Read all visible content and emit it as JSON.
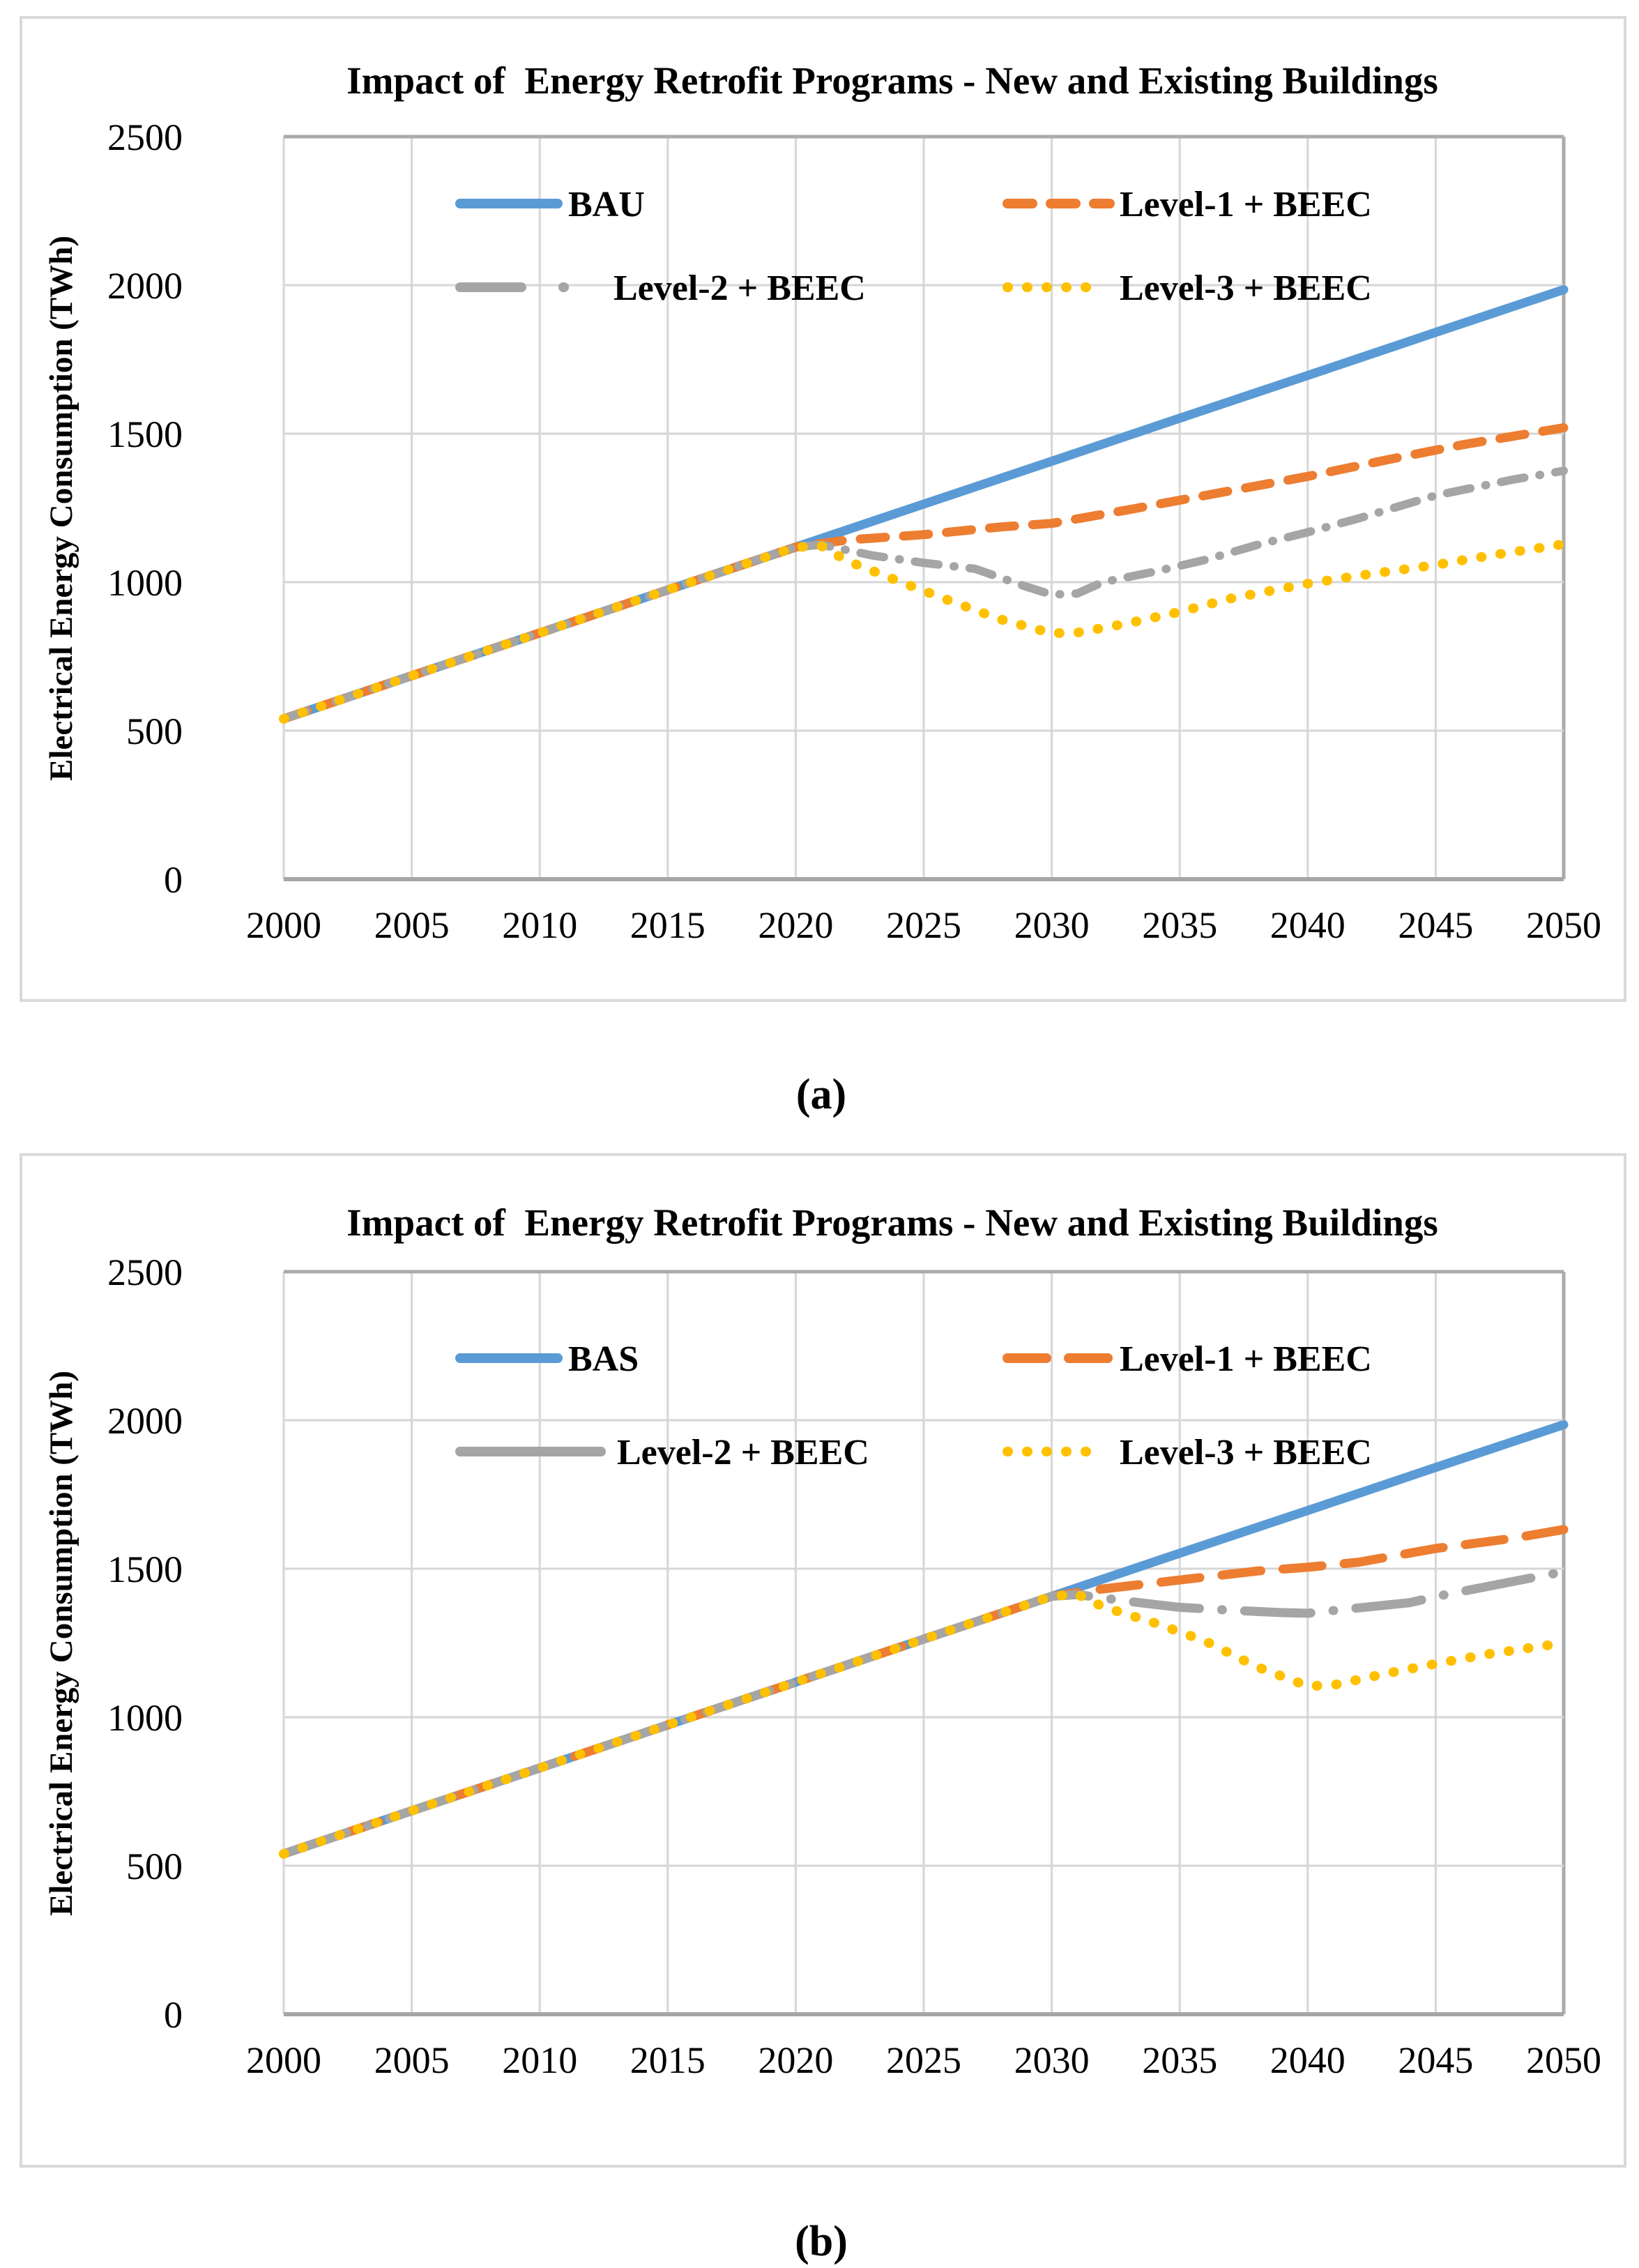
{
  "captions": {
    "a": "(a)",
    "b": "(b)"
  },
  "colors": {
    "bau_blue": "#5B9BD5",
    "level1_orange": "#ED7D31",
    "level2_gray": "#A5A5A5",
    "level3_gold": "#FFC000",
    "gridline": "#D6D6D6",
    "axis": "#A6A6A6",
    "panel_border": "#D9D9D9"
  },
  "chart_data": [
    {
      "type": "line",
      "title": "Impact of  Energy Retrofit Programs - New and Existing Buildings",
      "xlabel": "",
      "ylabel": "Electrical Energy Consumption (TWh)",
      "ylim": [
        0,
        2500
      ],
      "xlim": [
        2000,
        2050
      ],
      "y_ticks": [
        0,
        500,
        1000,
        1500,
        2000,
        2500
      ],
      "x_ticks": [
        2000,
        2005,
        2010,
        2015,
        2020,
        2025,
        2030,
        2035,
        2040,
        2045,
        2050
      ],
      "grid": true,
      "legend_position": "inside-top",
      "series": [
        {
          "name": "BAU",
          "color": "#5B9BD5",
          "line_style": "solid",
          "points": [
            [
              2000,
              540
            ],
            [
              2005,
              685
            ],
            [
              2010,
              829
            ],
            [
              2015,
              974
            ],
            [
              2020,
              1118
            ],
            [
              2025,
              1263
            ],
            [
              2030,
              1407
            ],
            [
              2035,
              1552
            ],
            [
              2040,
              1696
            ],
            [
              2045,
              1841
            ],
            [
              2050,
              1985
            ]
          ]
        },
        {
          "name": "Level-1 + BEEC",
          "color": "#ED7D31",
          "line_style": "dashed",
          "points": [
            [
              2000,
              540
            ],
            [
              2005,
              685
            ],
            [
              2010,
              829
            ],
            [
              2015,
              974
            ],
            [
              2020,
              1118
            ],
            [
              2022,
              1142
            ],
            [
              2025,
              1160
            ],
            [
              2028,
              1186
            ],
            [
              2030,
              1198
            ],
            [
              2033,
              1244
            ],
            [
              2036,
              1292
            ],
            [
              2040,
              1356
            ],
            [
              2043,
              1410
            ],
            [
              2046,
              1462
            ],
            [
              2050,
              1520
            ]
          ]
        },
        {
          "name": "Level-2 + BEEC",
          "color": "#A5A5A5",
          "line_style": "dash-dot",
          "points": [
            [
              2000,
              540
            ],
            [
              2005,
              685
            ],
            [
              2010,
              829
            ],
            [
              2015,
              974
            ],
            [
              2020,
              1118
            ],
            [
              2021,
              1126
            ],
            [
              2023,
              1090
            ],
            [
              2025,
              1065
            ],
            [
              2027,
              1045
            ],
            [
              2028,
              1015
            ],
            [
              2029,
              985
            ],
            [
              2030,
              958
            ],
            [
              2031,
              962
            ],
            [
              2032,
              1000
            ],
            [
              2034,
              1035
            ],
            [
              2036,
              1075
            ],
            [
              2038,
              1125
            ],
            [
              2040,
              1168
            ],
            [
              2042,
              1215
            ],
            [
              2045,
              1292
            ],
            [
              2048,
              1345
            ],
            [
              2050,
              1375
            ]
          ]
        },
        {
          "name": "Level-3 + BEEC",
          "color": "#FFC000",
          "line_style": "dotted",
          "points": [
            [
              2000,
              540
            ],
            [
              2005,
              685
            ],
            [
              2010,
              829
            ],
            [
              2015,
              974
            ],
            [
              2020,
              1118
            ],
            [
              2021,
              1122
            ],
            [
              2022,
              1072
            ],
            [
              2024,
              1004
            ],
            [
              2026,
              938
            ],
            [
              2028,
              875
            ],
            [
              2030,
              828
            ],
            [
              2031,
              830
            ],
            [
              2033,
              862
            ],
            [
              2035,
              900
            ],
            [
              2037,
              945
            ],
            [
              2040,
              995
            ],
            [
              2042,
              1022
            ],
            [
              2045,
              1058
            ],
            [
              2047,
              1088
            ],
            [
              2050,
              1128
            ]
          ]
        }
      ]
    },
    {
      "type": "line",
      "title": "Impact of  Energy Retrofit Programs - New and Existing Buildings",
      "xlabel": "",
      "ylabel": "Electrical Energy Consumption (TWh)",
      "ylim": [
        0,
        2500
      ],
      "xlim": [
        2000,
        2050
      ],
      "y_ticks": [
        0,
        500,
        1000,
        1500,
        2000,
        2500
      ],
      "x_ticks": [
        2000,
        2005,
        2010,
        2015,
        2020,
        2025,
        2030,
        2035,
        2040,
        2045,
        2050
      ],
      "grid": true,
      "legend_position": "inside-top",
      "series": [
        {
          "name": "BAS",
          "color": "#5B9BD5",
          "line_style": "solid",
          "points": [
            [
              2000,
              540
            ],
            [
              2005,
              685
            ],
            [
              2010,
              829
            ],
            [
              2015,
              974
            ],
            [
              2020,
              1118
            ],
            [
              2025,
              1263
            ],
            [
              2030,
              1407
            ],
            [
              2035,
              1552
            ],
            [
              2040,
              1696
            ],
            [
              2045,
              1841
            ],
            [
              2050,
              1985
            ]
          ]
        },
        {
          "name": "Level-1 + BEEC",
          "color": "#ED7D31",
          "line_style": "long-dashed",
          "points": [
            [
              2000,
              540
            ],
            [
              2005,
              685
            ],
            [
              2010,
              829
            ],
            [
              2015,
              974
            ],
            [
              2020,
              1118
            ],
            [
              2025,
              1263
            ],
            [
              2030,
              1407
            ],
            [
              2032,
              1432
            ],
            [
              2035,
              1462
            ],
            [
              2038,
              1492
            ],
            [
              2040,
              1505
            ],
            [
              2042,
              1522
            ],
            [
              2045,
              1568
            ],
            [
              2048,
              1602
            ],
            [
              2050,
              1632
            ]
          ]
        },
        {
          "name": "Level-2 + BEEC",
          "color": "#A5A5A5",
          "line_style": "long-dash-dot",
          "points": [
            [
              2000,
              540
            ],
            [
              2005,
              685
            ],
            [
              2010,
              829
            ],
            [
              2015,
              974
            ],
            [
              2020,
              1118
            ],
            [
              2025,
              1263
            ],
            [
              2030,
              1407
            ],
            [
              2031,
              1413
            ],
            [
              2033,
              1390
            ],
            [
              2035,
              1370
            ],
            [
              2037,
              1360
            ],
            [
              2039,
              1352
            ],
            [
              2040,
              1350
            ],
            [
              2042,
              1368
            ],
            [
              2044,
              1386
            ],
            [
              2045,
              1406
            ],
            [
              2047,
              1440
            ],
            [
              2050,
              1490
            ]
          ]
        },
        {
          "name": "Level-3 + BEEC",
          "color": "#FFC000",
          "line_style": "dotted",
          "points": [
            [
              2000,
              540
            ],
            [
              2005,
              685
            ],
            [
              2010,
              829
            ],
            [
              2015,
              974
            ],
            [
              2020,
              1118
            ],
            [
              2025,
              1263
            ],
            [
              2030,
              1407
            ],
            [
              2031,
              1414
            ],
            [
              2032,
              1372
            ],
            [
              2034,
              1318
            ],
            [
              2036,
              1256
            ],
            [
              2038,
              1170
            ],
            [
              2040,
              1105
            ],
            [
              2041,
              1108
            ],
            [
              2043,
              1146
            ],
            [
              2045,
              1180
            ],
            [
              2047,
              1212
            ],
            [
              2050,
              1250
            ]
          ]
        }
      ]
    }
  ]
}
